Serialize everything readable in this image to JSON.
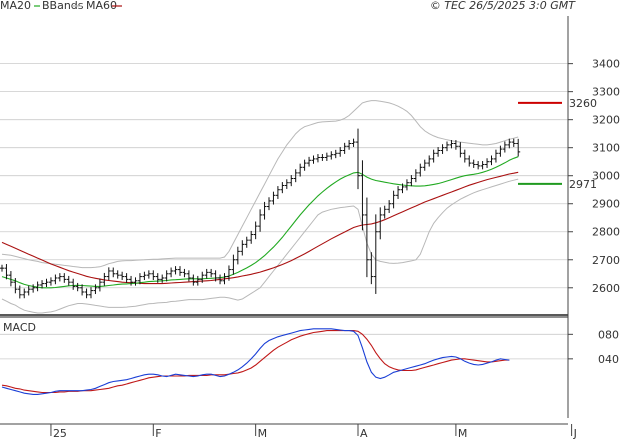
{
  "header": {
    "ma20_label": "MA20",
    "bbands_label": "BBands",
    "ma60_label": "MA60",
    "copyright": "© TEC 26/5/2025 3:0 GMT"
  },
  "colors": {
    "ma20": "#22aa22",
    "bbands": "#b8b8b8",
    "ma60": "#aa1111",
    "bars": "#111111",
    "macd": "#1a3fd6",
    "signal": "#c01818",
    "grid": "#cccccc",
    "level_red": "#cc0000",
    "level_green": "#1f9a1f"
  },
  "chart_data": {
    "type": "ohlc",
    "price_axis": {
      "ylim": [
        2510,
        3570
      ],
      "ticks": [
        {
          "value": 2600,
          "label": "2600"
        },
        {
          "value": 2700,
          "label": "2700"
        },
        {
          "value": 2800,
          "label": "2800"
        },
        {
          "value": 2900,
          "label": "2900"
        },
        {
          "value": 3000,
          "label": "3000"
        },
        {
          "value": 3100,
          "label": "3100"
        },
        {
          "value": 3200,
          "label": "3200"
        },
        {
          "value": 3300,
          "label": "3300"
        },
        {
          "value": 3400,
          "label": "3400"
        }
      ]
    },
    "x_axis": {
      "ticks": [
        {
          "index": 11,
          "label": "25"
        },
        {
          "index": 34,
          "label": "F"
        },
        {
          "index": 57,
          "label": "M"
        },
        {
          "index": 80,
          "label": "A"
        },
        {
          "index": 102,
          "label": "M"
        },
        {
          "index": 128,
          "label": "J"
        }
      ]
    },
    "levels": [
      {
        "value": 3260,
        "label": "3260",
        "color": "#cc0000"
      },
      {
        "value": 2971,
        "label": "2971",
        "color": "#1f9a1f"
      }
    ],
    "closes": [
      2670,
      2645,
      2620,
      2595,
      2575,
      2585,
      2595,
      2600,
      2610,
      2615,
      2620,
      2625,
      2635,
      2640,
      2630,
      2620,
      2605,
      2600,
      2585,
      2575,
      2590,
      2600,
      2620,
      2640,
      2660,
      2650,
      2645,
      2640,
      2630,
      2620,
      2625,
      2640,
      2645,
      2650,
      2640,
      2630,
      2635,
      2650,
      2660,
      2665,
      2655,
      2650,
      2635,
      2620,
      2630,
      2645,
      2655,
      2650,
      2635,
      2625,
      2640,
      2665,
      2700,
      2730,
      2755,
      2770,
      2790,
      2820,
      2860,
      2890,
      2910,
      2930,
      2950,
      2965,
      2975,
      2990,
      3010,
      3030,
      3045,
      3055,
      3060,
      3065,
      3065,
      3070,
      3075,
      3080,
      3090,
      3105,
      3115,
      3120,
      3000,
      2860,
      2700,
      2640,
      2800,
      2860,
      2880,
      2900,
      2930,
      2950,
      2960,
      2975,
      2990,
      3010,
      3030,
      3045,
      3060,
      3080,
      3090,
      3100,
      3110,
      3115,
      3105,
      3080,
      3060,
      3045,
      3040,
      3035,
      3040,
      3050,
      3060,
      3080,
      3095,
      3110,
      3120,
      3115,
      3085
    ],
    "ma20": [
      2640,
      2635,
      2630,
      2625,
      2618,
      2612,
      2608,
      2605,
      2602,
      2600,
      2600,
      2600,
      2601,
      2603,
      2605,
      2607,
      2608,
      2609,
      2608,
      2607,
      2606,
      2605,
      2605,
      2606,
      2608,
      2610,
      2612,
      2613,
      2614,
      2615,
      2616,
      2618,
      2620,
      2622,
      2623,
      2624,
      2625,
      2626,
      2628,
      2629,
      2630,
      2631,
      2632,
      2632,
      2632,
      2632,
      2633,
      2634,
      2635,
      2636,
      2638,
      2642,
      2648,
      2655,
      2663,
      2671,
      2680,
      2690,
      2702,
      2715,
      2730,
      2745,
      2762,
      2780,
      2800,
      2820,
      2840,
      2860,
      2878,
      2896,
      2912,
      2928,
      2942,
      2955,
      2967,
      2978,
      2988,
      2996,
      3003,
      3010,
      3012,
      3005,
      2995,
      2988,
      2983,
      2980,
      2977,
      2974,
      2971,
      2969,
      2967,
      2965,
      2964,
      2963,
      2963,
      2964,
      2966,
      2969,
      2972,
      2976,
      2981,
      2986,
      2991,
      2996,
      3000,
      3003,
      3005,
      3008,
      3012,
      3017,
      3023,
      3030,
      3038,
      3046,
      3055,
      3062,
      3068
    ],
    "ma60": [
      2762,
      2755,
      2748,
      2741,
      2734,
      2727,
      2720,
      2713,
      2706,
      2699,
      2692,
      2685,
      2679,
      2673,
      2667,
      2661,
      2656,
      2651,
      2646,
      2641,
      2637,
      2634,
      2631,
      2628,
      2626,
      2624,
      2622,
      2620,
      2619,
      2618,
      2617,
      2616,
      2615,
      2615,
      2615,
      2615,
      2615,
      2616,
      2617,
      2618,
      2619,
      2620,
      2621,
      2622,
      2623,
      2624,
      2625,
      2626,
      2628,
      2630,
      2632,
      2634,
      2636,
      2639,
      2642,
      2645,
      2648,
      2652,
      2656,
      2661,
      2666,
      2671,
      2677,
      2683,
      2690,
      2697,
      2705,
      2713,
      2721,
      2730,
      2739,
      2748,
      2757,
      2766,
      2775,
      2783,
      2791,
      2799,
      2807,
      2815,
      2820,
      2824,
      2826,
      2828,
      2832,
      2837,
      2843,
      2850,
      2857,
      2864,
      2871,
      2878,
      2885,
      2892,
      2899,
      2906,
      2912,
      2918,
      2924,
      2930,
      2936,
      2942,
      2948,
      2954,
      2960,
      2966,
      2971,
      2976,
      2981,
      2986,
      2990,
      2994,
      2998,
      3002,
      3006,
      3009,
      3012
    ],
    "bb_upper": [
      2720,
      2718,
      2716,
      2712,
      2708,
      2704,
      2700,
      2697,
      2694,
      2690,
      2688,
      2686,
      2684,
      2682,
      2680,
      2678,
      2676,
      2674,
      2672,
      2672,
      2672,
      2673,
      2675,
      2680,
      2686,
      2690,
      2694,
      2696,
      2697,
      2697,
      2698,
      2699,
      2700,
      2701,
      2702,
      2702,
      2703,
      2704,
      2705,
      2706,
      2706,
      2706,
      2706,
      2706,
      2706,
      2706,
      2706,
      2706,
      2706,
      2706,
      2710,
      2730,
      2760,
      2790,
      2820,
      2850,
      2880,
      2910,
      2940,
      2970,
      3000,
      3030,
      3060,
      3085,
      3110,
      3130,
      3150,
      3165,
      3175,
      3180,
      3185,
      3190,
      3192,
      3193,
      3194,
      3195,
      3198,
      3205,
      3215,
      3230,
      3245,
      3260,
      3265,
      3268,
      3268,
      3266,
      3263,
      3260,
      3255,
      3248,
      3240,
      3230,
      3215,
      3195,
      3175,
      3160,
      3150,
      3142,
      3136,
      3132,
      3128,
      3125,
      3122,
      3120,
      3118,
      3116,
      3114,
      3112,
      3110,
      3110,
      3112,
      3115,
      3120,
      3125,
      3130,
      3134,
      3138
    ],
    "bb_lower": [
      2560,
      2552,
      2544,
      2538,
      2528,
      2520,
      2516,
      2513,
      2510,
      2510,
      2512,
      2514,
      2518,
      2524,
      2530,
      2536,
      2540,
      2544,
      2544,
      2542,
      2540,
      2537,
      2535,
      2532,
      2530,
      2530,
      2530,
      2530,
      2531,
      2533,
      2534,
      2537,
      2540,
      2543,
      2544,
      2546,
      2547,
      2548,
      2551,
      2552,
      2554,
      2556,
      2558,
      2558,
      2558,
      2558,
      2560,
      2562,
      2564,
      2566,
      2566,
      2564,
      2560,
      2556,
      2560,
      2570,
      2580,
      2590,
      2600,
      2620,
      2640,
      2660,
      2680,
      2700,
      2720,
      2740,
      2760,
      2780,
      2800,
      2820,
      2840,
      2860,
      2870,
      2875,
      2880,
      2883,
      2886,
      2888,
      2890,
      2892,
      2880,
      2820,
      2760,
      2720,
      2700,
      2694,
      2691,
      2688,
      2687,
      2688,
      2690,
      2693,
      2696,
      2700,
      2720,
      2760,
      2800,
      2830,
      2850,
      2868,
      2884,
      2896,
      2906,
      2916,
      2924,
      2932,
      2939,
      2945,
      2950,
      2955,
      2960,
      2965,
      2970,
      2975,
      2980,
      2984,
      2988
    ],
    "macd": {
      "label": "MACD",
      "ylim": [
        -50,
        105
      ],
      "ticks": [
        {
          "value": 40,
          "label": "040"
        },
        {
          "value": 80,
          "label": "080"
        }
      ],
      "macd_line": [
        -6,
        -8,
        -10,
        -12,
        -14,
        -16,
        -17,
        -18,
        -18,
        -17,
        -16,
        -15,
        -13,
        -12,
        -12,
        -12,
        -12,
        -12,
        -12,
        -11,
        -10,
        -8,
        -5,
        -2,
        1,
        3,
        4,
        5,
        6,
        8,
        10,
        12,
        14,
        15,
        15,
        14,
        12,
        11,
        13,
        15,
        14,
        13,
        12,
        11,
        12,
        14,
        15,
        15,
        13,
        11,
        12,
        15,
        18,
        22,
        27,
        33,
        40,
        48,
        57,
        65,
        70,
        73,
        76,
        78,
        80,
        82,
        84,
        86,
        87,
        88,
        89,
        89,
        89,
        89,
        89,
        88,
        87,
        86,
        86,
        85,
        78,
        58,
        35,
        18,
        10,
        8,
        10,
        14,
        18,
        20,
        22,
        24,
        26,
        28,
        30,
        32,
        35,
        38,
        40,
        42,
        43,
        44,
        43,
        40,
        36,
        33,
        31,
        30,
        31,
        33,
        35,
        38,
        40,
        39,
        38
      ],
      "signal_line": [
        -3,
        -4,
        -6,
        -8,
        -9,
        -11,
        -12,
        -13,
        -14,
        -15,
        -15,
        -15,
        -15,
        -14,
        -14,
        -13,
        -13,
        -13,
        -12,
        -12,
        -12,
        -11,
        -10,
        -9,
        -8,
        -6,
        -4,
        -3,
        -1,
        1,
        3,
        5,
        7,
        9,
        10,
        11,
        12,
        12,
        12,
        12,
        12,
        12,
        13,
        13,
        13,
        13,
        13,
        14,
        14,
        14,
        14,
        15,
        16,
        17,
        19,
        22,
        25,
        30,
        36,
        42,
        48,
        54,
        59,
        63,
        67,
        71,
        74,
        77,
        79,
        81,
        83,
        84,
        85,
        86,
        86,
        86,
        86,
        86,
        86,
        86,
        85,
        80,
        72,
        62,
        50,
        40,
        32,
        27,
        24,
        22,
        21,
        21,
        21,
        22,
        24,
        26,
        28,
        30,
        32,
        34,
        36,
        38,
        39,
        40,
        40,
        39,
        38,
        37,
        36,
        35,
        35,
        36,
        37,
        38,
        38
      ]
    }
  }
}
